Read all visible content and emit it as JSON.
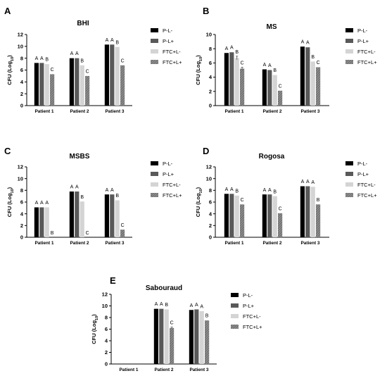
{
  "chart_data": [
    {
      "panel": "A",
      "type": "bar",
      "title": "BHI",
      "ylabel": "CFU (Log10)",
      "ylim": [
        0,
        12
      ],
      "yticks": [
        0,
        2,
        4,
        6,
        8,
        10,
        12
      ],
      "categories": [
        "Patient 1",
        "Patient 2",
        "Patient 3"
      ],
      "series": [
        {
          "name": "P-L-",
          "values": [
            7.2,
            8.0,
            10.3
          ],
          "errors": [
            0.05,
            0.05,
            0.05
          ],
          "labels": [
            "A",
            "A",
            "A"
          ]
        },
        {
          "name": "P-L+",
          "values": [
            7.2,
            8.0,
            10.3
          ],
          "errors": [
            0.05,
            0.05,
            0.05
          ],
          "labels": [
            "A",
            "A",
            "A"
          ]
        },
        {
          "name": "FTC+L-",
          "values": [
            7.0,
            6.8,
            9.9
          ],
          "errors": [
            0.05,
            0.05,
            0.05
          ],
          "labels": [
            "B",
            "B",
            "B"
          ]
        },
        {
          "name": "FTC+L+",
          "values": [
            5.3,
            5.0,
            6.8
          ],
          "errors": [
            0.05,
            0.05,
            0.05
          ],
          "labels": [
            "C",
            "C",
            "C"
          ]
        }
      ]
    },
    {
      "panel": "B",
      "type": "bar",
      "title": "MS",
      "ylabel": "CFU (Log10)",
      "ylim": [
        0,
        10
      ],
      "yticks": [
        0,
        2,
        4,
        6,
        8,
        10
      ],
      "categories": [
        "Patient 1",
        "Patient 2",
        "Patient 3"
      ],
      "series": [
        {
          "name": "P-L-",
          "values": [
            7.4,
            5.1,
            8.3
          ],
          "errors": [
            0.05,
            0.05,
            0.05
          ],
          "labels": [
            "A",
            "A",
            "A"
          ]
        },
        {
          "name": "P-L+",
          "values": [
            7.5,
            5.0,
            8.2
          ],
          "errors": [
            0.05,
            0.05,
            0.05
          ],
          "labels": [
            "A",
            "A",
            "A"
          ]
        },
        {
          "name": "FTC+L-",
          "values": [
            6.7,
            4.3,
            6.2
          ],
          "errors": [
            0.25,
            0.05,
            0.05
          ],
          "labels": [
            "B",
            "B",
            "B"
          ]
        },
        {
          "name": "FTC+L+",
          "values": [
            5.2,
            2.1,
            5.4
          ],
          "errors": [
            0.2,
            0.05,
            0.05
          ],
          "labels": [
            "C",
            "C",
            "C"
          ]
        }
      ]
    },
    {
      "panel": "C",
      "type": "bar",
      "title": "MSBS",
      "ylabel": "CFU (Log10)",
      "ylim": [
        0,
        12
      ],
      "yticks": [
        0,
        2,
        4,
        6,
        8,
        10,
        12
      ],
      "categories": [
        "Patient 1",
        "Patient 2",
        "Patient 3"
      ],
      "series": [
        {
          "name": "P-L-",
          "values": [
            5.1,
            7.8,
            7.3
          ],
          "errors": [
            0.05,
            0.05,
            0.05
          ],
          "labels": [
            "A",
            "A",
            "A"
          ]
        },
        {
          "name": "P-L+",
          "values": [
            5.1,
            7.8,
            7.3
          ],
          "errors": [
            0.05,
            0.05,
            0.05
          ],
          "labels": [
            "A",
            "A",
            "A"
          ]
        },
        {
          "name": "FTC+L-",
          "values": [
            5.1,
            6.1,
            6.3
          ],
          "errors": [
            0.05,
            0.05,
            0.05
          ],
          "labels": [
            "A",
            "B",
            "B"
          ]
        },
        {
          "name": "FTC+L+",
          "values": [
            0,
            0,
            1.3
          ],
          "errors": [
            0,
            0,
            0.05
          ],
          "labels": [
            "B",
            "C",
            "C"
          ]
        }
      ]
    },
    {
      "panel": "D",
      "type": "bar",
      "title": "Rogosa",
      "ylabel": "CFU (Log10)",
      "ylim": [
        0,
        12
      ],
      "yticks": [
        0,
        2,
        4,
        6,
        8,
        10,
        12
      ],
      "categories": [
        "Patient 1",
        "Patient 2",
        "Patient 3"
      ],
      "series": [
        {
          "name": "P-L-",
          "values": [
            7.4,
            7.3,
            8.7
          ],
          "errors": [
            0.05,
            0.05,
            0.05
          ],
          "labels": [
            "A",
            "A",
            "A"
          ]
        },
        {
          "name": "P-L+",
          "values": [
            7.4,
            7.3,
            8.7
          ],
          "errors": [
            0.05,
            0.05,
            0.05
          ],
          "labels": [
            "A",
            "A",
            "A"
          ]
        },
        {
          "name": "FTC+L-",
          "values": [
            7.1,
            7.0,
            8.6
          ],
          "errors": [
            0.05,
            0.05,
            0.05
          ],
          "labels": [
            "B",
            "B",
            "A"
          ]
        },
        {
          "name": "FTC+L+",
          "values": [
            5.6,
            4.1,
            5.6
          ],
          "errors": [
            0.05,
            0.05,
            0.05
          ],
          "labels": [
            "C",
            "C",
            "B"
          ]
        }
      ]
    },
    {
      "panel": "E",
      "type": "bar",
      "title": "Sabouraud",
      "ylabel": "CFU (Log10)",
      "ylim": [
        0,
        12
      ],
      "yticks": [
        0,
        2,
        4,
        6,
        8,
        10,
        12
      ],
      "categories": [
        "Patient 1",
        "Patient 2",
        "Patient 3"
      ],
      "series": [
        {
          "name": "P-L-",
          "values": [
            0,
            9.5,
            9.3
          ],
          "errors": [
            0,
            0.05,
            0.05
          ],
          "labels": [
            "",
            "A",
            "A"
          ]
        },
        {
          "name": "P-L+",
          "values": [
            0,
            9.5,
            9.4
          ],
          "errors": [
            0,
            0.05,
            0.05
          ],
          "labels": [
            "",
            "A",
            "A"
          ]
        },
        {
          "name": "FTC+L-",
          "values": [
            0,
            9.4,
            9.1
          ],
          "errors": [
            0,
            0.05,
            0.05
          ],
          "labels": [
            "",
            "B",
            "A"
          ]
        },
        {
          "name": "FTC+L+",
          "values": [
            0,
            6.2,
            7.5
          ],
          "errors": [
            0,
            0.15,
            0.05
          ],
          "labels": [
            "",
            "C",
            "B"
          ]
        }
      ]
    }
  ],
  "legend": {
    "items": [
      "P-L-",
      "P-L+",
      "FTC+L-",
      "FTC+L+"
    ],
    "colors": [
      "#000000",
      "#595959",
      "#d4d4d4",
      "#8c8c8c"
    ],
    "patterns": [
      "solid",
      "solid",
      "solid",
      "hatched"
    ]
  },
  "colors": {
    "series": [
      "#000000",
      "#595959",
      "#d4d4d4",
      "#8c8c8c"
    ],
    "axis": "#000000"
  }
}
